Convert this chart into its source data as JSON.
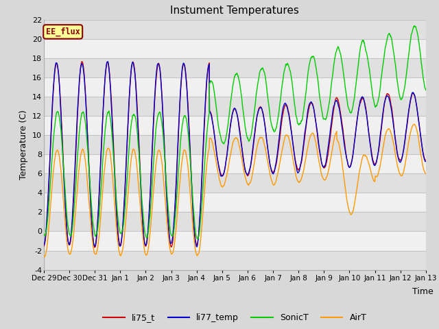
{
  "title": "Instument Temperatures",
  "xlabel": "Time",
  "ylabel": "Temperature (C)",
  "ylim": [
    -4,
    22
  ],
  "yticks": [
    -4,
    -2,
    0,
    2,
    4,
    6,
    8,
    10,
    12,
    14,
    16,
    18,
    20,
    22
  ],
  "bg_color": "#d8d8d8",
  "plot_bg_light": "#f0f0f0",
  "plot_bg_dark": "#e0e0e0",
  "line_colors": {
    "li75_t": "#cc0000",
    "li77_temp": "#0000cc",
    "SonicT": "#00cc00",
    "AirT": "#ff9900"
  },
  "line_width": 1.0,
  "annotation_text": "EE_flux",
  "annotation_bg": "#ffff99",
  "annotation_border": "#880000",
  "figsize": [
    6.4,
    4.8
  ],
  "dpi": 100,
  "x_tick_labels": [
    "Dec 29",
    "Dec 30",
    "Dec 31",
    "Jan 1",
    "Jan 2",
    "Jan 3",
    "Jan 4",
    "Jan 5",
    "Jan 6",
    "Jan 7",
    "Jan 8",
    "Jan 9",
    "Jan 10",
    "Jan 11",
    "Jan 12",
    "Jan 13"
  ]
}
